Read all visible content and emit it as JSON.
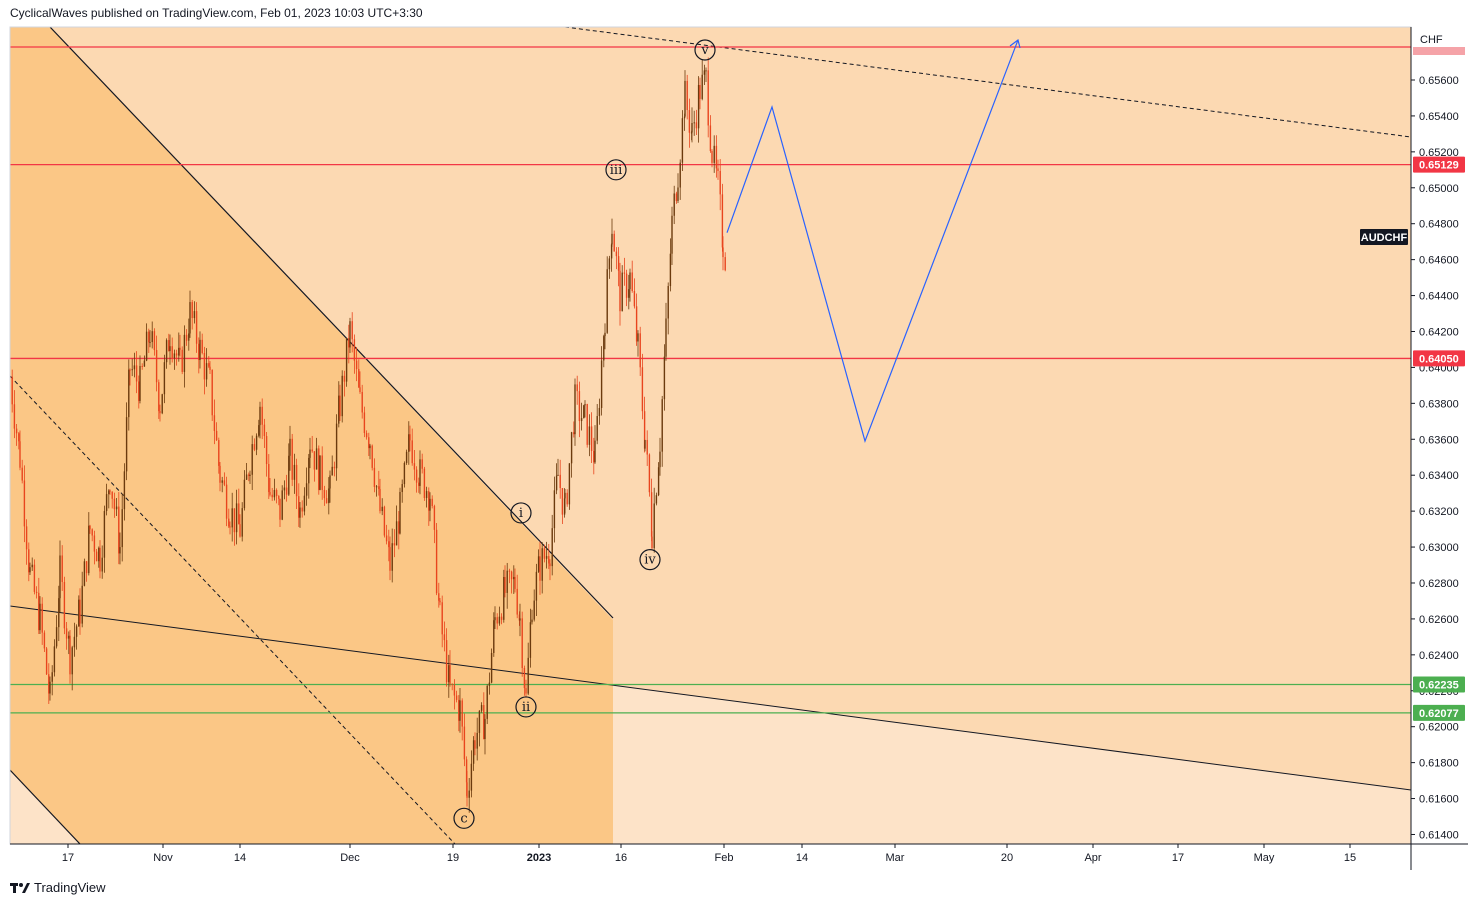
{
  "header": {
    "publisher_line": "CyclicalWaves published on TradingView.com, Feb 01, 2023 10:03 UTC+3:30"
  },
  "footer": {
    "brand": "TradingView"
  },
  "colors": {
    "bg_light": "#fde3c8",
    "bg_mid": "#fcd9b2",
    "bg_dark": "#fbc786",
    "up_candle": "#6b3a0d",
    "down_candle": "#e8451e",
    "red_line": "#f23645",
    "green_line": "#4caf50",
    "projection": "#2962ff"
  },
  "chart_data": {
    "type": "candlestick",
    "symbol": "AUDCHF",
    "currency": "CHF",
    "y_ticks": [
      "0.65600",
      "0.65400",
      "0.65200",
      "0.65000",
      "0.64800",
      "0.64600",
      "0.64400",
      "0.64200",
      "0.64000",
      "0.63800",
      "0.63600",
      "0.63400",
      "0.63200",
      "0.63000",
      "0.62800",
      "0.62600",
      "0.62400",
      "0.62200",
      "0.62000",
      "0.61800",
      "0.61600",
      "0.61400"
    ],
    "y_tick_values": [
      0.656,
      0.654,
      0.652,
      0.65,
      0.648,
      0.646,
      0.644,
      0.642,
      0.64,
      0.638,
      0.636,
      0.634,
      0.632,
      0.63,
      0.628,
      0.626,
      0.624,
      0.622,
      0.62,
      0.618,
      0.616,
      0.614
    ],
    "ylim": [
      0.6134,
      0.6589
    ],
    "x_ticks": [
      {
        "label": "17",
        "x": 68
      },
      {
        "label": "Nov",
        "x": 163
      },
      {
        "label": "14",
        "x": 240
      },
      {
        "label": "Dec",
        "x": 350
      },
      {
        "label": "19",
        "x": 453
      },
      {
        "label": "2023",
        "x": 539,
        "bold": true
      },
      {
        "label": "16",
        "x": 621
      },
      {
        "label": "Feb",
        "x": 724
      },
      {
        "label": "14",
        "x": 802
      },
      {
        "label": "Mar",
        "x": 895
      },
      {
        "label": "20",
        "x": 1007
      },
      {
        "label": "Apr",
        "x": 1093
      },
      {
        "label": "17",
        "x": 1178
      },
      {
        "label": "May",
        "x": 1264
      },
      {
        "label": "15",
        "x": 1350
      }
    ],
    "horizontal_levels": [
      {
        "value": 0.6589,
        "label": "",
        "color": "red"
      },
      {
        "value": 0.65129,
        "label": "0.65129",
        "color": "red"
      },
      {
        "value": 0.6405,
        "label": "0.64050",
        "color": "red"
      },
      {
        "value": 0.62235,
        "label": "0.62235",
        "color": "green"
      },
      {
        "value": 0.62077,
        "label": "0.62077",
        "color": "green"
      }
    ],
    "symbol_tag": {
      "label": "AUDCHF",
      "value": 0.6478
    },
    "wave_labels": [
      {
        "text": "c",
        "x": 464,
        "value": 0.6149
      },
      {
        "text": "i",
        "x": 521,
        "value": 0.6319
      },
      {
        "text": "ii",
        "x": 526,
        "value": 0.6211
      },
      {
        "text": "iii",
        "x": 616,
        "value": 0.651
      },
      {
        "text": "iv",
        "x": 650,
        "value": 0.6293
      },
      {
        "text": "v",
        "x": 705,
        "value": 0.6575
      }
    ],
    "projection_path": [
      {
        "x": 727,
        "value": 0.6475
      },
      {
        "x": 772,
        "value": 0.6545
      },
      {
        "x": 865,
        "value": 0.6359
      },
      {
        "x": 1018,
        "value": 0.6589
      }
    ],
    "price_path": [
      [
        10,
        0.6395
      ],
      [
        20,
        0.635
      ],
      [
        30,
        0.6285
      ],
      [
        40,
        0.626
      ],
      [
        50,
        0.6215
      ],
      [
        60,
        0.6285
      ],
      [
        70,
        0.624
      ],
      [
        80,
        0.6265
      ],
      [
        90,
        0.631
      ],
      [
        100,
        0.6295
      ],
      [
        110,
        0.634
      ],
      [
        120,
        0.63
      ],
      [
        130,
        0.64
      ],
      [
        140,
        0.639
      ],
      [
        150,
        0.642
      ],
      [
        160,
        0.638
      ],
      [
        170,
        0.642
      ],
      [
        180,
        0.64
      ],
      [
        190,
        0.643
      ],
      [
        200,
        0.641
      ],
      [
        210,
        0.639
      ],
      [
        220,
        0.634
      ],
      [
        230,
        0.632
      ],
      [
        240,
        0.631
      ],
      [
        250,
        0.635
      ],
      [
        260,
        0.638
      ],
      [
        270,
        0.633
      ],
      [
        280,
        0.632
      ],
      [
        290,
        0.635
      ],
      [
        300,
        0.632
      ],
      [
        310,
        0.636
      ],
      [
        320,
        0.634
      ],
      [
        330,
        0.633
      ],
      [
        340,
        0.638
      ],
      [
        350,
        0.642
      ],
      [
        360,
        0.638
      ],
      [
        370,
        0.636
      ],
      [
        380,
        0.632
      ],
      [
        390,
        0.629
      ],
      [
        400,
        0.632
      ],
      [
        410,
        0.636
      ],
      [
        420,
        0.634
      ],
      [
        430,
        0.633
      ],
      [
        440,
        0.626
      ],
      [
        450,
        0.622
      ],
      [
        460,
        0.621
      ],
      [
        467,
        0.6165
      ],
      [
        475,
        0.6195
      ],
      [
        485,
        0.6205
      ],
      [
        495,
        0.626
      ],
      [
        505,
        0.6275
      ],
      [
        515,
        0.628
      ],
      [
        520,
        0.626
      ],
      [
        526,
        0.6215
      ],
      [
        532,
        0.627
      ],
      [
        540,
        0.629
      ],
      [
        550,
        0.63
      ],
      [
        558,
        0.634
      ],
      [
        565,
        0.632
      ],
      [
        575,
        0.638
      ],
      [
        585,
        0.637
      ],
      [
        595,
        0.635
      ],
      [
        605,
        0.643
      ],
      [
        612,
        0.648
      ],
      [
        620,
        0.644
      ],
      [
        630,
        0.645
      ],
      [
        638,
        0.641
      ],
      [
        645,
        0.636
      ],
      [
        652,
        0.631
      ],
      [
        660,
        0.636
      ],
      [
        666,
        0.642
      ],
      [
        672,
        0.648
      ],
      [
        678,
        0.651
      ],
      [
        685,
        0.655
      ],
      [
        692,
        0.653
      ],
      [
        700,
        0.6555
      ],
      [
        706,
        0.656
      ],
      [
        712,
        0.652
      ],
      [
        718,
        0.65
      ],
      [
        723,
        0.647
      ],
      [
        726,
        0.646
      ]
    ]
  }
}
